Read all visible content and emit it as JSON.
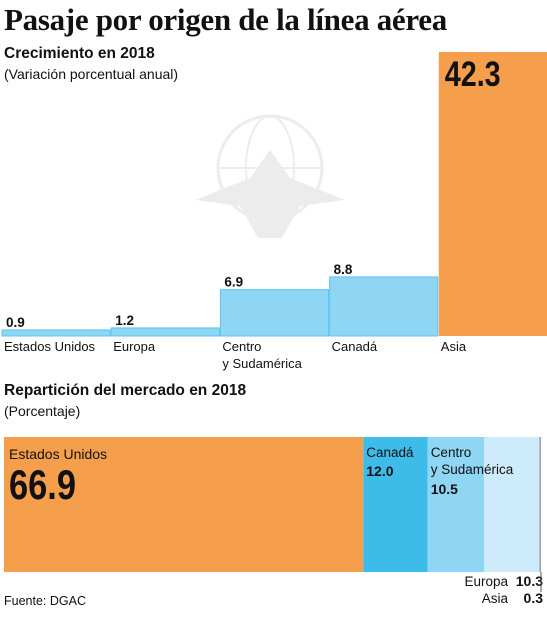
{
  "title": "Pasaje por origen de la línea aérea",
  "source": "Fuente: DGAC",
  "colors": {
    "orange": "#F59F4D",
    "light_blue": "#8ED6F4",
    "mid_blue": "#3EBCE9",
    "pale_blue": "#CDEBFA",
    "bar_edge": "#5BC5EF"
  },
  "chart_data": [
    {
      "type": "bar",
      "title": "Crecimiento en 2018",
      "subtitle": "(Variación porcentual anual)",
      "categories": [
        "Estados Unidos",
        "Europa",
        "Centro y Sudamérica",
        "Canadá",
        "Asia"
      ],
      "category_lines": [
        [
          "Estados Unidos"
        ],
        [
          "Europa"
        ],
        [
          "Centro",
          "y Sudamérica"
        ],
        [
          "Canadá"
        ],
        [
          "Asia"
        ]
      ],
      "values": [
        0.9,
        1.2,
        6.9,
        8.8,
        42.3
      ],
      "value_labels": [
        "0.9",
        "1.2",
        "6.9",
        "8.8",
        "42.3"
      ],
      "highlight": "Asia",
      "ylim": [
        0,
        42.3
      ],
      "grid": false
    },
    {
      "type": "bar",
      "orientation": "stacked-horizontal",
      "title": "Repartición del mercado en 2018",
      "subtitle": "(Porcentaje)",
      "categories": [
        "Estados Unidos",
        "Canadá",
        "Centro y Sudamérica",
        "Europa",
        "Asia"
      ],
      "values": [
        66.9,
        12.0,
        10.5,
        10.3,
        0.3
      ],
      "value_labels": [
        "66.9",
        "12.0",
        "10.5",
        "10.3",
        "0.3"
      ],
      "label_lines": [
        [
          "Estados Unidos"
        ],
        [
          "Canadá"
        ],
        [
          "Centro",
          "y Sudamérica"
        ],
        [
          "Europa"
        ],
        [
          "Asia"
        ]
      ],
      "xlim": [
        0,
        100
      ]
    }
  ]
}
